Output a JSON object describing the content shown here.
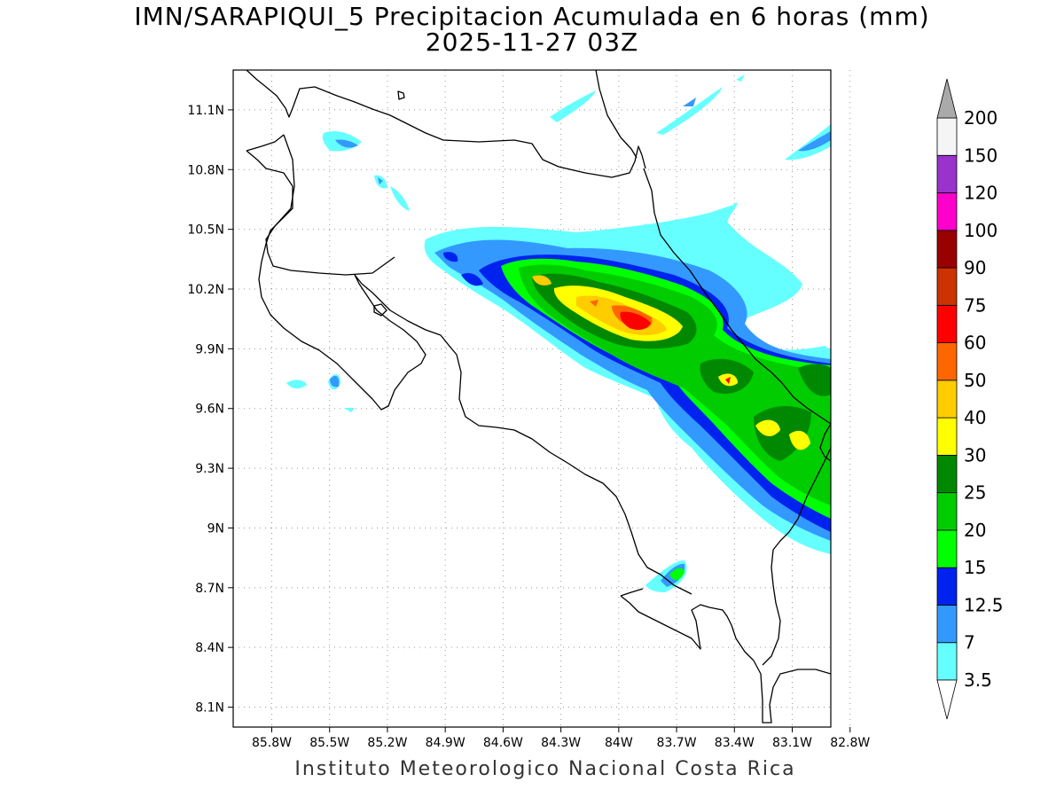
{
  "title": {
    "line1": "IMN/SARAPIQUI_5 Precipitacion Acumulada en 6 horas (mm)",
    "line2": "2025-11-27 03Z"
  },
  "footer": "Instituto Meteorologico Nacional Costa Rica",
  "map": {
    "lon_range": [
      -86.0,
      -82.9
    ],
    "lat_range": [
      8.0,
      11.3
    ],
    "lon_ticks": [
      "85.8W",
      "85.5W",
      "85.2W",
      "84.9W",
      "84.6W",
      "84.3W",
      "84W",
      "83.7W",
      "83.4W",
      "83.1W",
      "82.8W"
    ],
    "lat_ticks": [
      "11.1N",
      "10.8N",
      "10.5N",
      "10.2N",
      "9.9N",
      "9.6N",
      "9.3N",
      "9N",
      "8.7N",
      "8.4N",
      "8.1N"
    ],
    "grid": true
  },
  "colorbar": {
    "labels": [
      "3.5",
      "7",
      "12.5",
      "15",
      "20",
      "25",
      "30",
      "40",
      "50",
      "60",
      "75",
      "90",
      "100",
      "120",
      "150",
      "200"
    ],
    "colors": [
      "#66ffff",
      "#3399ff",
      "#0022ee",
      "#00ff00",
      "#00cc00",
      "#008800",
      "#ffff00",
      "#ffcc00",
      "#ff6600",
      "#ff0000",
      "#cc3300",
      "#990000",
      "#ff00cc",
      "#9933cc",
      "#f5f5f5",
      "#aaaaaa"
    ]
  }
}
